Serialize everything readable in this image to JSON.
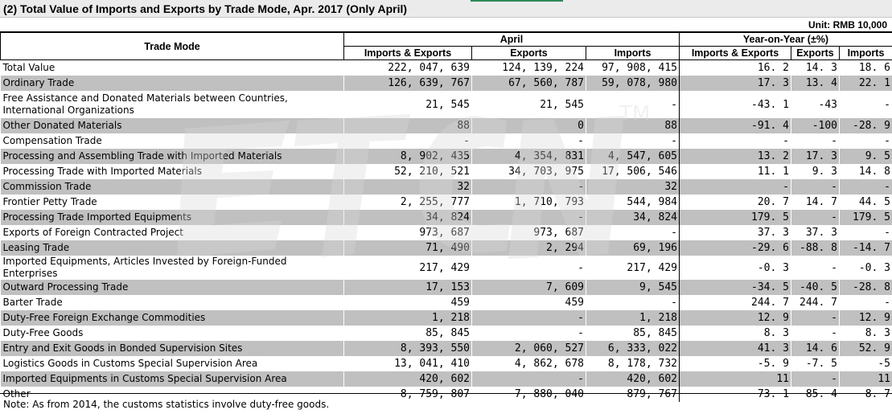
{
  "title": "(2) Total Value of Imports and Exports by Trade Mode, Apr. 2017 (Only April)",
  "unit": "Unit: RMB 10,000",
  "headers": {
    "trade_mode": "Trade Mode",
    "april": "April",
    "yoy": "Year-on-Year (±%)",
    "imports_exports": "Imports & Exports",
    "exports": "Exports",
    "imports": "Imports"
  },
  "rows": [
    {
      "name": "Total Value",
      "ie": "222, 047, 639",
      "ex": "124, 139, 224",
      "im": "97, 908, 415",
      "yie": "16. 2",
      "yex": "14. 3",
      "yim": "18. 6"
    },
    {
      "name": "Ordinary Trade",
      "ie": "126, 639, 767",
      "ex": "67, 560, 787",
      "im": "59, 078, 980",
      "yie": "17. 3",
      "yex": "13. 4",
      "yim": "22. 1"
    },
    {
      "name": "Free Assistance and Donated Materials between Countries, International Organizations",
      "ie": "21, 545",
      "ex": "21, 545",
      "im": "-",
      "yie": "-43. 1",
      "yex": "-43",
      "yim": "-"
    },
    {
      "name": "Other Donated Materials",
      "ie": "88",
      "ex": "0",
      "im": "88",
      "yie": "-91. 4",
      "yex": "-100",
      "yim": "-28. 9"
    },
    {
      "name": "Compensation Trade",
      "ie": "-",
      "ex": "-",
      "im": "-",
      "yie": "-",
      "yex": "-",
      "yim": "-"
    },
    {
      "name": "Processing and Assembling Trade with Imported Materials",
      "ie": "8, 902, 435",
      "ex": "4, 354, 831",
      "im": "4, 547, 605",
      "yie": "13. 2",
      "yex": "17. 3",
      "yim": "9. 5"
    },
    {
      "name": "Processing Trade with Imported Materials",
      "ie": "52, 210, 521",
      "ex": "34, 703, 975",
      "im": "17, 506, 546",
      "yie": "11. 1",
      "yex": "9. 3",
      "yim": "14. 8"
    },
    {
      "name": "Commission Trade",
      "ie": "32",
      "ex": "-",
      "im": "32",
      "yie": "-",
      "yex": "-",
      "yim": "-"
    },
    {
      "name": "Frontier Petty Trade",
      "ie": "2, 255, 777",
      "ex": "1, 710, 793",
      "im": "544, 984",
      "yie": "20. 7",
      "yex": "14. 7",
      "yim": "44. 5"
    },
    {
      "name": "Processing Trade Imported Equipments",
      "ie": "34, 824",
      "ex": "-",
      "im": "34, 824",
      "yie": "179. 5",
      "yex": "-",
      "yim": "179. 5"
    },
    {
      "name": "Exports of Foreign Contracted Project",
      "ie": "973, 687",
      "ex": "973, 687",
      "im": "-",
      "yie": "37. 3",
      "yex": "37. 3",
      "yim": "-"
    },
    {
      "name": "Leasing Trade",
      "ie": "71, 490",
      "ex": "2, 294",
      "im": "69, 196",
      "yie": "-29. 6",
      "yex": "-88. 8",
      "yim": "-14. 7"
    },
    {
      "name": "Imported Equipments, Articles Invested by Foreign-Funded Enterprises",
      "ie": "217, 429",
      "ex": "-",
      "im": "217, 429",
      "yie": "-0. 3",
      "yex": "-",
      "yim": "-0. 3"
    },
    {
      "name": "Outward Processing Trade",
      "ie": "17, 153",
      "ex": "7, 609",
      "im": "9, 545",
      "yie": "-34. 5",
      "yex": "-40. 5",
      "yim": "-28. 8"
    },
    {
      "name": "Barter Trade",
      "ie": "459",
      "ex": "459",
      "im": "-",
      "yie": "244. 7",
      "yex": "244. 7",
      "yim": "-"
    },
    {
      "name": "Duty-Free Foreign Exchange Commodities",
      "ie": "1, 218",
      "ex": "-",
      "im": "1, 218",
      "yie": "12. 9",
      "yex": "-",
      "yim": "12. 9"
    },
    {
      "name": "Duty-Free Goods",
      "ie": "85, 845",
      "ex": "-",
      "im": "85, 845",
      "yie": "8. 3",
      "yex": "-",
      "yim": "8. 3"
    },
    {
      "name": "Entry and Exit Goods in Bonded Supervision Sites",
      "ie": "8, 393, 550",
      "ex": "2, 060, 527",
      "im": "6, 333, 022",
      "yie": "41. 3",
      "yex": "14. 6",
      "yim": "52. 9"
    },
    {
      "name": "Logistics Goods in Customs Special Supervision Area",
      "ie": "13, 041, 410",
      "ex": "4, 862, 678",
      "im": "8, 178, 732",
      "yie": "-5. 9",
      "yex": "-7. 5",
      "yim": "-5"
    },
    {
      "name": "Imported Equipments in Customs Special Supervision Area",
      "ie": "420, 602",
      "ex": "-",
      "im": "420, 602",
      "yie": "11",
      "yex": "-",
      "yim": "11"
    },
    {
      "name": "Other",
      "ie": "8, 759, 807",
      "ex": "7, 880, 040",
      "im": "879, 767",
      "yie": "73. 1",
      "yex": "85. 4",
      "yim": "8. 7"
    }
  ],
  "note": "Note: As from 2014, the customs statistics involve duty-free goods.",
  "watermark_text": "ETCN",
  "watermark_tm": "TM",
  "colors": {
    "shade": "#c0c0c0",
    "title_bg": "#ebebeb",
    "watermark": "#d9d9d9"
  }
}
